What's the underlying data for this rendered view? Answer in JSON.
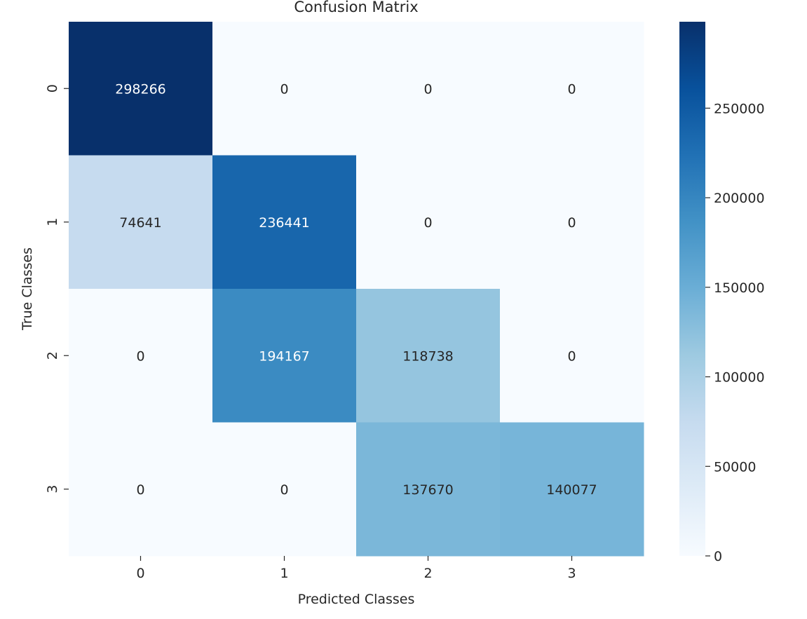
{
  "chart_data": {
    "type": "heatmap",
    "title": "Confusion Matrix",
    "xlabel": "Predicted Classes",
    "ylabel": "True Classes",
    "x_categories": [
      "0",
      "1",
      "2",
      "3"
    ],
    "y_categories": [
      "0",
      "1",
      "2",
      "3"
    ],
    "values": [
      [
        298266,
        0,
        0,
        0
      ],
      [
        74641,
        236441,
        0,
        0
      ],
      [
        0,
        194167,
        118738,
        0
      ],
      [
        0,
        0,
        137670,
        140077
      ]
    ],
    "colormap": "Blues",
    "colorbar": {
      "min": 0,
      "max": 298266,
      "ticks": [
        0,
        50000,
        100000,
        150000,
        200000,
        250000
      ],
      "tick_labels": [
        "0",
        "50000",
        "100000",
        "150000",
        "200000",
        "250000"
      ]
    }
  }
}
